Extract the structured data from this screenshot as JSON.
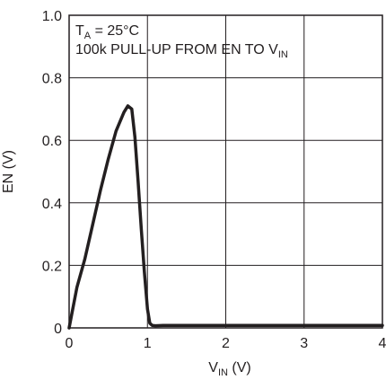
{
  "chart_data": {
    "type": "line",
    "xlabel": "V",
    "xlabel_sub": "IN",
    "xlabel_unit": " (V)",
    "ylabel": "EN (V)",
    "xlim": [
      0,
      4
    ],
    "ylim": [
      0,
      1.0
    ],
    "x_ticks": [
      0,
      1,
      2,
      3,
      4
    ],
    "x_tick_labels": [
      "0",
      "1",
      "2",
      "3",
      "4"
    ],
    "y_ticks": [
      0,
      0.2,
      0.4,
      0.6,
      0.8,
      1.0
    ],
    "y_tick_labels": [
      "0",
      "0.2",
      "0.4",
      "0.6",
      "0.8",
      "1.0"
    ],
    "grid": true,
    "annotations": {
      "line1_main": "T",
      "line1_sub": "A",
      "line1_rest": " = 25°C",
      "line2_main": "100k PULL-UP FROM EN TO V",
      "line2_sub": "IN"
    },
    "series": [
      {
        "x": [
          0,
          0.1,
          0.2,
          0.3,
          0.4,
          0.5,
          0.6,
          0.7,
          0.75,
          0.8,
          0.84,
          0.88,
          0.92,
          0.96,
          1.0,
          1.03,
          1.06,
          1.1,
          1.2,
          1.5,
          2.0,
          3.0,
          4.0
        ],
        "y": [
          0,
          0.13,
          0.22,
          0.33,
          0.44,
          0.54,
          0.63,
          0.69,
          0.71,
          0.7,
          0.61,
          0.47,
          0.32,
          0.18,
          0.06,
          0.015,
          0.008,
          0.007,
          0.008,
          0.008,
          0.008,
          0.008,
          0.008
        ]
      }
    ]
  }
}
